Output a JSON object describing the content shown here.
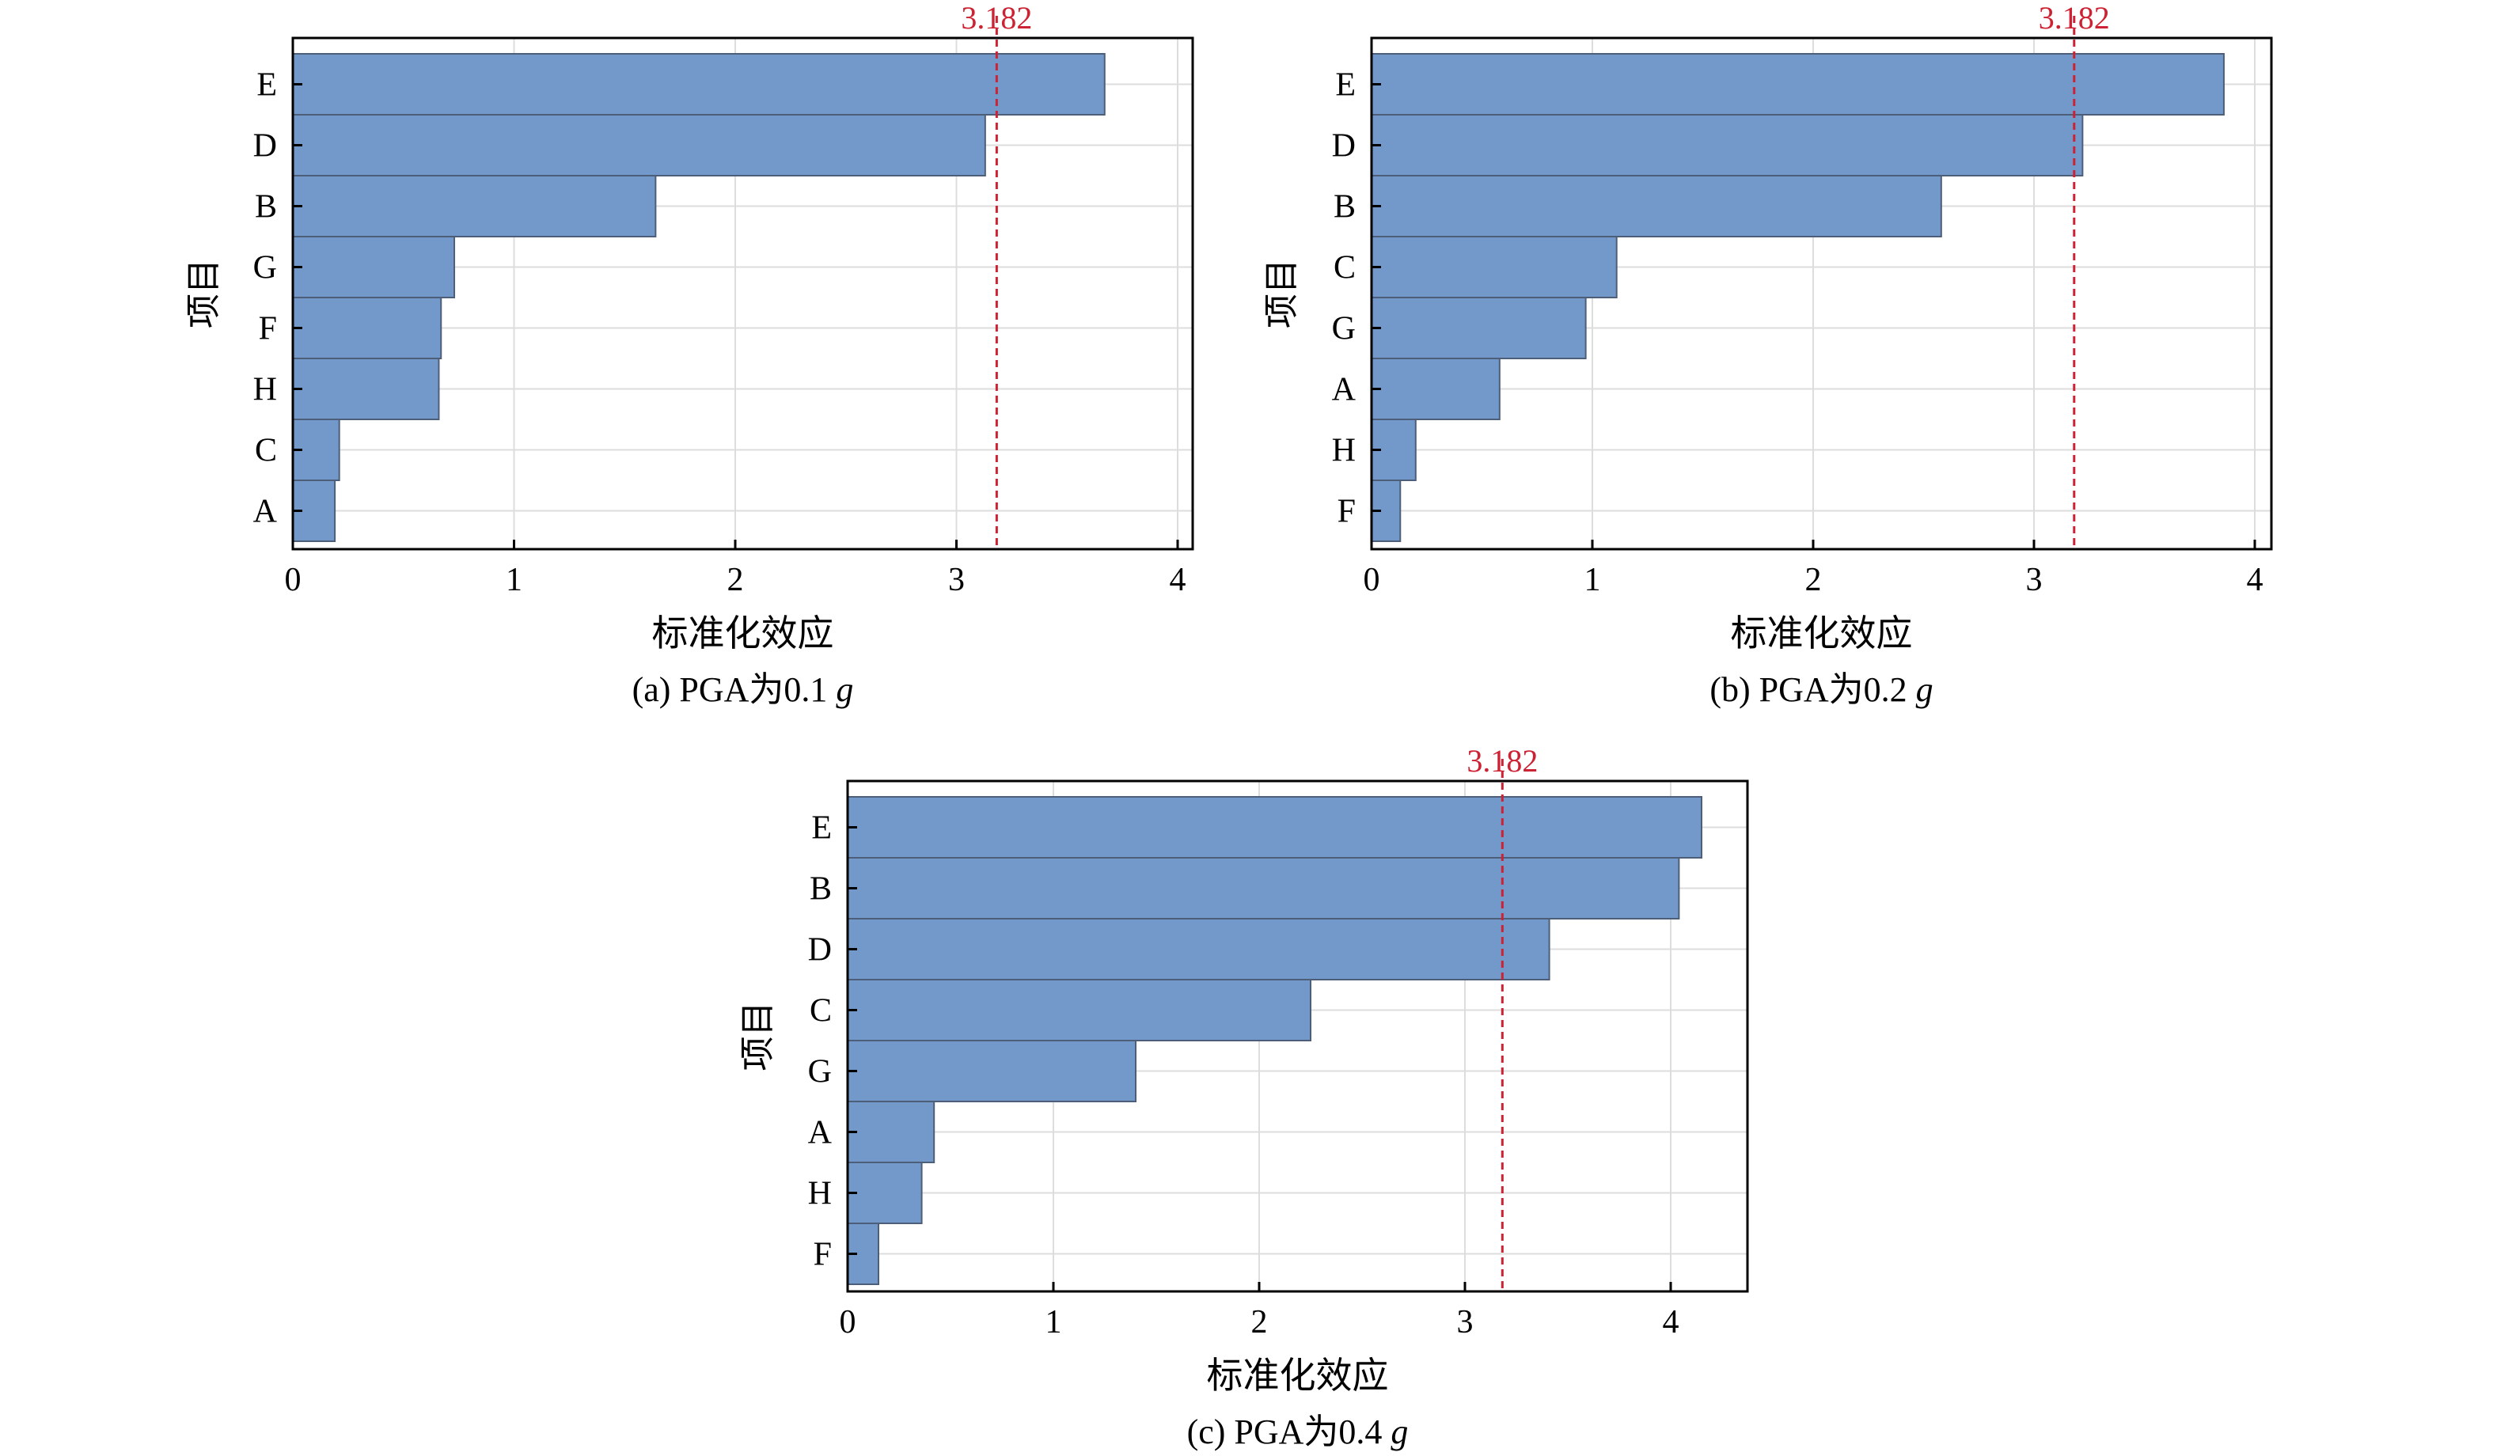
{
  "colors": {
    "bar_fill": "#7398ca",
    "bar_stroke": "#4d5f78",
    "grid": "#dddddd",
    "axis": "#000000",
    "threshold": "#cc2233",
    "text": "#000000"
  },
  "chart_data": [
    {
      "type": "bar",
      "orientation": "horizontal",
      "caption": "(a) PGA为0.1 g",
      "caption_main": "(a) PGA为0.1 ",
      "caption_g": "g",
      "xlabel": "标准化效应",
      "ylabel": "项目",
      "xlim": [
        0,
        4.1
      ],
      "xticks": [
        "0",
        "1",
        "2",
        "3",
        "4"
      ],
      "grid": true,
      "categories": [
        "E",
        "D",
        "B",
        "G",
        "F",
        "H",
        "C",
        "A"
      ],
      "values": [
        3.67,
        3.13,
        1.64,
        0.73,
        0.67,
        0.66,
        0.21,
        0.19
      ],
      "threshold": {
        "value": 3.182,
        "label": "3.182"
      }
    },
    {
      "type": "bar",
      "orientation": "horizontal",
      "caption": "(b) PGA为0.2 g",
      "caption_main": "(b) PGA为0.2 ",
      "caption_g": "g",
      "xlabel": "标准化效应",
      "ylabel": "项目",
      "xlim": [
        0,
        4.1
      ],
      "xticks": [
        "0",
        "1",
        "2",
        "3",
        "4"
      ],
      "grid": true,
      "categories": [
        "E",
        "D",
        "B",
        "C",
        "G",
        "A",
        "H",
        "F"
      ],
      "values": [
        3.86,
        3.22,
        2.58,
        1.11,
        0.97,
        0.58,
        0.2,
        0.13
      ],
      "threshold": {
        "value": 3.182,
        "label": "3.182"
      }
    },
    {
      "type": "bar",
      "orientation": "horizontal",
      "caption": "(c) PGA为0.4 g",
      "caption_main": "(c) PGA为0.4 ",
      "caption_g": "g",
      "xlabel": "标准化效应",
      "ylabel": "项目",
      "xlim": [
        0,
        4.4
      ],
      "xticks": [
        "0",
        "1",
        "2",
        "3",
        "4"
      ],
      "grid": true,
      "categories": [
        "E",
        "B",
        "D",
        "C",
        "G",
        "A",
        "H",
        "F"
      ],
      "values": [
        4.15,
        4.04,
        3.41,
        2.25,
        1.4,
        0.42,
        0.36,
        0.15
      ],
      "threshold": {
        "value": 3.182,
        "label": "3.182"
      }
    }
  ]
}
